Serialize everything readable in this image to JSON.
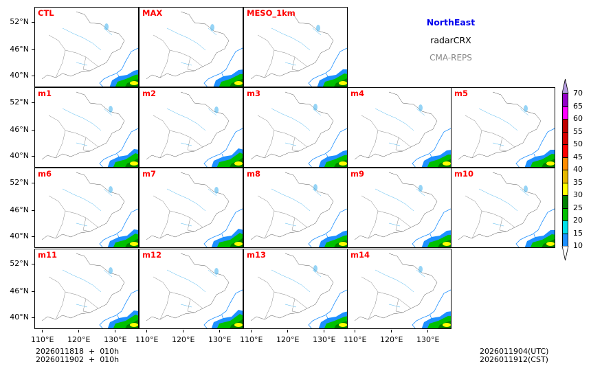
{
  "titles": {
    "region": "NorthEast",
    "product": "radarCRX",
    "model": "CMA-REPS"
  },
  "panel_rows": [
    [
      "CTL",
      "MAX",
      "MESO_1km"
    ],
    [
      "m1",
      "m2",
      "m3",
      "m4",
      "m5"
    ],
    [
      "m6",
      "m7",
      "m8",
      "m9",
      "m10"
    ],
    [
      "m11",
      "m12",
      "m13",
      "m14"
    ]
  ],
  "y_ticks": [
    "52°N",
    "46°N",
    "40°N"
  ],
  "x_ticks": [
    "110°E",
    "120°E",
    "130°E"
  ],
  "footer_left": {
    "line1": "2026011818  +  010h",
    "line2": "2026011902  +  010h"
  },
  "footer_right": {
    "line1": "2026011904(UTC)",
    "line2": "2026011912(CST)"
  },
  "colorbar": {
    "levels": [
      "10",
      "15",
      "20",
      "25",
      "30",
      "35",
      "40",
      "45",
      "50",
      "55",
      "60",
      "65",
      "70"
    ],
    "colors": [
      "#1e90ff",
      "#00e0e8",
      "#00c000",
      "#008000",
      "#ffff00",
      "#e6b800",
      "#ff8c00",
      "#ff0000",
      "#d80000",
      "#c00000",
      "#ff00ff",
      "#9400c8"
    ],
    "over_color": "#b49ae0",
    "under_color": "#ffffff"
  }
}
